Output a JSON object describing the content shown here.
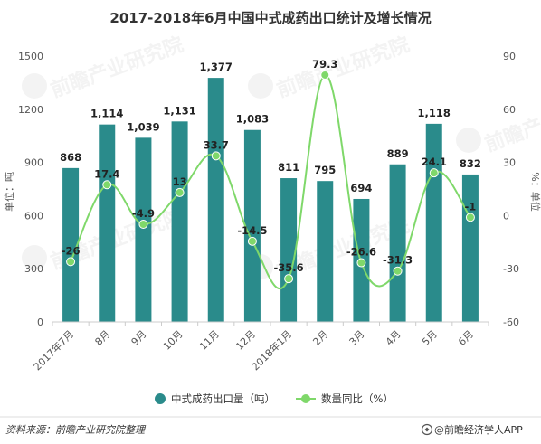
{
  "chart_data": {
    "type": "bar",
    "title": "2017-2018年6月中国中式成药出口统计及增长情况",
    "categories": [
      "2017年7月",
      "8月",
      "9月",
      "10月",
      "11月",
      "12月",
      "2018年1月",
      "2月",
      "3月",
      "4月",
      "5月",
      "6月"
    ],
    "series": [
      {
        "name": "中式成药出口量（吨）",
        "type": "bar",
        "axis": "left",
        "color": "#2a8b8b",
        "values": [
          868,
          1114,
          1039,
          1131,
          1377,
          1083,
          811,
          795,
          694,
          889,
          1118,
          832
        ],
        "labels": [
          "868",
          "1,114",
          "1,039",
          "1,131",
          "1,377",
          "1,083",
          "811",
          "795",
          "694",
          "889",
          "1,118",
          "832"
        ]
      },
      {
        "name": "数量同比（%）",
        "type": "line",
        "axis": "right",
        "color": "#7fd86a",
        "values": [
          -26,
          17.4,
          -4.9,
          13,
          33.7,
          -14.5,
          -35.6,
          79.3,
          -26.6,
          -31.3,
          24.1,
          -1
        ],
        "labels": [
          "-26",
          "17.4",
          "-4.9",
          "13",
          "33.7",
          "-14.5",
          "-35.6",
          "79.3",
          "-26.6",
          "-31.3",
          "24.1",
          "-1"
        ]
      }
    ],
    "ylabel": "单位：吨",
    "ylabel_right": "%：单位",
    "ylim": [
      0,
      1500
    ],
    "yticks": [
      "0",
      "300",
      "600",
      "900",
      "1200",
      "1500"
    ],
    "ylim_right": [
      -60,
      90
    ],
    "yticks_right": [
      "-60",
      "-30",
      "0",
      "30",
      "60",
      "90"
    ],
    "legend_position": "bottom",
    "grid": false
  },
  "footer": {
    "source": "资料来源：前瞻产业研究院整理",
    "brand": "@前瞻经济学人APP"
  },
  "watermark": {
    "text": "前瞻产业研究院"
  }
}
